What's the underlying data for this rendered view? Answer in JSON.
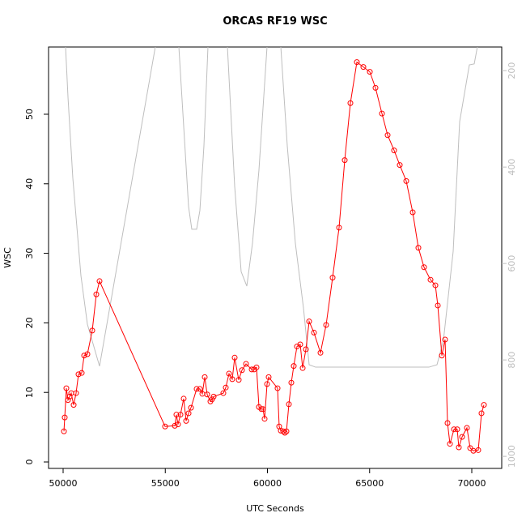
{
  "chart_data": {
    "type": "line",
    "title": "ORCAS RF19 WSC",
    "xlabel": "UTC Seconds",
    "ylabel": "WSC",
    "xlim": [
      49287,
      71465
    ],
    "ylim": [
      -0.93,
      59.67
    ],
    "y2lim": [
      1025,
      151
    ],
    "xticks": [
      50000,
      55000,
      60000,
      65000,
      70000
    ],
    "yticks": [
      0,
      10,
      20,
      30,
      40,
      50
    ],
    "y2ticks": [
      200,
      400,
      600,
      800,
      1000
    ],
    "series": [
      {
        "color": "#ff0000",
        "marker": "circle",
        "x": [
          50040,
          50079,
          50158,
          50238,
          50317,
          50396,
          50515,
          50634,
          50752,
          50911,
          51030,
          51188,
          51426,
          51624,
          51782,
          54989,
          55465,
          55544,
          55623,
          55742,
          55900,
          56019,
          56139,
          56258,
          56535,
          56693,
          56812,
          56931,
          57050,
          57208,
          57287,
          57366,
          57841,
          57960,
          58119,
          58277,
          58396,
          58594,
          58753,
          58951,
          59228,
          59346,
          59465,
          59584,
          59703,
          59782,
          59861,
          59980,
          60059,
          60495,
          60574,
          60653,
          60772,
          60851,
          60930,
          61049,
          61168,
          61287,
          61445,
          61604,
          61723,
          61881,
          62040,
          62277,
          62594,
          62871,
          63188,
          63505,
          63782,
          64059,
          64376,
          64693,
          65010,
          65287,
          65604,
          65881,
          66198,
          66475,
          66792,
          67109,
          67386,
          67663,
          67980,
          68218,
          68337,
          68535,
          68693,
          68812,
          68931,
          69129,
          69287,
          69366,
          69525,
          69762,
          69921,
          70079,
          70317,
          70475,
          70594
        ],
        "values": [
          4.4,
          6.4,
          10.6,
          8.9,
          9.4,
          9.9,
          8.2,
          9.9,
          12.6,
          12.8,
          15.3,
          15.5,
          18.9,
          24.1,
          26.0,
          5.1,
          5.2,
          6.8,
          5.4,
          6.8,
          9.1,
          5.9,
          7.0,
          7.8,
          10.5,
          10.5,
          9.8,
          12.2,
          9.7,
          8.7,
          9.0,
          9.4,
          9.9,
          10.7,
          12.7,
          11.9,
          15.0,
          11.8,
          13.2,
          14.1,
          13.3,
          13.3,
          13.6,
          7.9,
          7.6,
          7.6,
          6.2,
          11.2,
          12.2,
          10.6,
          5.1,
          4.5,
          4.4,
          4.2,
          4.4,
          8.3,
          11.4,
          13.8,
          16.6,
          16.9,
          13.5,
          16.2,
          20.2,
          18.6,
          15.7,
          19.7,
          26.5,
          33.7,
          43.4,
          51.6,
          57.5,
          56.8,
          56.1,
          53.8,
          50.1,
          47.0,
          44.8,
          42.7,
          40.4,
          35.9,
          30.8,
          28.0,
          26.2,
          25.4,
          22.5,
          15.3,
          17.6,
          5.6,
          2.6,
          4.7,
          4.7,
          2.1,
          3.6,
          4.9,
          2.0,
          1.6,
          1.7,
          7.0,
          8.2
        ]
      },
      {
        "color": "#bebebe",
        "axis": "y2",
        "x": [
          50119,
          50238,
          50475,
          50871,
          51188,
          51782,
          54515,
          55000,
          55663,
          56139,
          56297,
          56535,
          56693,
          56891,
          57089,
          57500,
          58040,
          58396,
          58713,
          58990,
          59267,
          59584,
          59980,
          60300,
          60653,
          60970,
          61366,
          61762,
          62040,
          62356,
          67901,
          68297,
          68614,
          69089,
          69406,
          69881,
          70119,
          70277
        ],
        "values": [
          150,
          255,
          423,
          625,
          726,
          813,
          150,
          null,
          150,
          482,
          529,
          529,
          490,
          356,
          150,
          null,
          150,
          440,
          617,
          647,
          558,
          406,
          150,
          null,
          150,
          356,
          558,
          692,
          810,
          815,
          815,
          810,
          759,
          575,
          306,
          188,
          186,
          150
        ]
      }
    ]
  }
}
